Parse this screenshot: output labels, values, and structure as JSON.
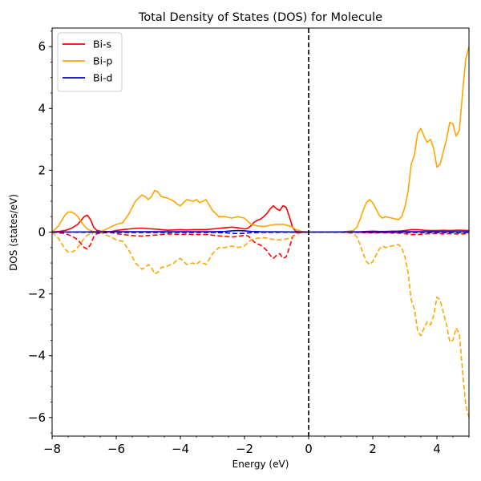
{
  "chart_data": {
    "type": "line",
    "title": "Total Density of States (DOS) for Molecule",
    "xlabel": "Energy (eV)",
    "ylabel": "DOS (states/eV)",
    "xlim": [
      -8,
      5
    ],
    "ylim": [
      -6.6,
      6.6
    ],
    "x_ticks": [
      -8,
      -6,
      -4,
      -2,
      0,
      2,
      4
    ],
    "x_tick_labels": [
      "−8",
      "−6",
      "−4",
      "−2",
      "0",
      "2",
      "4"
    ],
    "y_ticks": [
      -6,
      -4,
      -2,
      0,
      2,
      4,
      6
    ],
    "y_tick_labels": [
      "−6",
      "−4",
      "−2",
      "0",
      "2",
      "4",
      "6"
    ],
    "grid": false,
    "legend_position": "top-left",
    "fermi_level": 0,
    "series": [
      {
        "name": "Bi-s",
        "color": "#ff0000",
        "x": [
          -8,
          -7.8,
          -7.6,
          -7.4,
          -7.2,
          -7.0,
          -6.9,
          -6.8,
          -6.7,
          -6.6,
          -6.4,
          -6.2,
          -6.0,
          -5.8,
          -5.6,
          -5.4,
          -5.2,
          -5.0,
          -4.8,
          -4.6,
          -4.4,
          -4.2,
          -4.0,
          -3.8,
          -3.6,
          -3.4,
          -3.2,
          -3.0,
          -2.8,
          -2.6,
          -2.4,
          -2.2,
          -2.0,
          -1.9,
          -1.8,
          -1.7,
          -1.6,
          -1.5,
          -1.4,
          -1.3,
          -1.2,
          -1.1,
          -1.0,
          -0.9,
          -0.8,
          -0.7,
          -0.6,
          -0.5,
          -0.4,
          -0.2,
          0,
          0.5,
          1.0,
          1.5,
          1.8,
          2.0,
          2.2,
          2.4,
          2.6,
          2.8,
          3.0,
          3.2,
          3.4,
          3.6,
          3.8,
          4.0,
          4.2,
          4.4,
          4.6,
          4.8,
          5.0
        ],
        "up": [
          0,
          0.02,
          0.05,
          0.12,
          0.25,
          0.5,
          0.55,
          0.4,
          0.15,
          0.05,
          0.02,
          0.01,
          0.05,
          0.08,
          0.1,
          0.12,
          0.13,
          0.11,
          0.1,
          0.08,
          0.06,
          0.07,
          0.08,
          0.07,
          0.08,
          0.08,
          0.08,
          0.1,
          0.12,
          0.14,
          0.16,
          0.14,
          0.1,
          0.12,
          0.2,
          0.32,
          0.38,
          0.42,
          0.5,
          0.6,
          0.75,
          0.85,
          0.75,
          0.7,
          0.85,
          0.8,
          0.5,
          0.15,
          0.02,
          0,
          0,
          0,
          0,
          0,
          0.02,
          0.03,
          0.02,
          0.02,
          0.03,
          0.03,
          0.05,
          0.08,
          0.08,
          0.06,
          0.05,
          0.05,
          0.06,
          0.05,
          0.06,
          0.06,
          0.05
        ],
        "down": [
          0,
          -0.02,
          -0.05,
          -0.12,
          -0.25,
          -0.5,
          -0.55,
          -0.4,
          -0.15,
          -0.05,
          -0.02,
          -0.01,
          -0.05,
          -0.08,
          -0.1,
          -0.12,
          -0.13,
          -0.11,
          -0.1,
          -0.08,
          -0.06,
          -0.07,
          -0.08,
          -0.07,
          -0.08,
          -0.08,
          -0.08,
          -0.1,
          -0.12,
          -0.14,
          -0.16,
          -0.14,
          -0.1,
          -0.12,
          -0.2,
          -0.32,
          -0.38,
          -0.42,
          -0.5,
          -0.6,
          -0.75,
          -0.85,
          -0.75,
          -0.7,
          -0.85,
          -0.8,
          -0.5,
          -0.15,
          -0.02,
          0,
          0,
          0,
          0,
          0,
          -0.02,
          -0.03,
          -0.02,
          -0.02,
          -0.03,
          -0.03,
          -0.05,
          -0.08,
          -0.08,
          -0.06,
          -0.05,
          -0.05,
          -0.06,
          -0.05,
          -0.06,
          -0.06,
          -0.05
        ]
      },
      {
        "name": "Bi-p",
        "color": "#ffa500",
        "x": [
          -8,
          -7.8,
          -7.6,
          -7.5,
          -7.4,
          -7.3,
          -7.2,
          -7.1,
          -7.0,
          -6.9,
          -6.8,
          -6.7,
          -6.6,
          -6.4,
          -6.2,
          -6.0,
          -5.8,
          -5.6,
          -5.4,
          -5.2,
          -5.1,
          -5.0,
          -4.9,
          -4.8,
          -4.7,
          -4.6,
          -4.4,
          -4.2,
          -4.1,
          -4.0,
          -3.9,
          -3.8,
          -3.6,
          -3.5,
          -3.4,
          -3.2,
          -3.0,
          -2.8,
          -2.6,
          -2.4,
          -2.2,
          -2.0,
          -1.9,
          -1.8,
          -1.6,
          -1.4,
          -1.2,
          -1.0,
          -0.8,
          -0.6,
          -0.5,
          -0.4,
          -0.2,
          0,
          0.5,
          1.0,
          1.4,
          1.5,
          1.6,
          1.7,
          1.8,
          1.9,
          2.0,
          2.1,
          2.2,
          2.3,
          2.4,
          2.6,
          2.8,
          2.9,
          3.0,
          3.1,
          3.2,
          3.3,
          3.4,
          3.5,
          3.6,
          3.7,
          3.8,
          3.9,
          4.0,
          4.1,
          4.2,
          4.3,
          4.4,
          4.5,
          4.6,
          4.7,
          4.8,
          4.9,
          5.0
        ],
        "up": [
          0,
          0.2,
          0.55,
          0.65,
          0.65,
          0.6,
          0.5,
          0.35,
          0.2,
          0.1,
          0.05,
          0.02,
          0,
          0.05,
          0.15,
          0.25,
          0.3,
          0.6,
          1.0,
          1.2,
          1.15,
          1.05,
          1.15,
          1.35,
          1.3,
          1.15,
          1.1,
          1.0,
          0.9,
          0.85,
          0.95,
          1.05,
          1.0,
          1.05,
          0.95,
          1.05,
          0.7,
          0.5,
          0.5,
          0.45,
          0.5,
          0.45,
          0.35,
          0.25,
          0.2,
          0.18,
          0.22,
          0.25,
          0.25,
          0.2,
          0.15,
          0.08,
          0.02,
          0,
          0,
          0,
          0.05,
          0.15,
          0.4,
          0.7,
          0.95,
          1.05,
          0.95,
          0.75,
          0.55,
          0.45,
          0.5,
          0.45,
          0.4,
          0.5,
          0.8,
          1.3,
          2.2,
          2.5,
          3.2,
          3.35,
          3.1,
          2.9,
          3.0,
          2.7,
          2.1,
          2.2,
          2.6,
          3.0,
          3.55,
          3.5,
          3.1,
          3.3,
          4.5,
          5.6,
          6.0
        ],
        "down": [
          0,
          -0.2,
          -0.55,
          -0.65,
          -0.65,
          -0.6,
          -0.5,
          -0.35,
          -0.2,
          -0.1,
          -0.05,
          -0.02,
          0,
          -0.05,
          -0.15,
          -0.25,
          -0.3,
          -0.6,
          -1.0,
          -1.2,
          -1.15,
          -1.05,
          -1.15,
          -1.35,
          -1.3,
          -1.15,
          -1.1,
          -1.0,
          -0.9,
          -0.85,
          -0.95,
          -1.05,
          -1.0,
          -1.05,
          -0.95,
          -1.05,
          -0.7,
          -0.5,
          -0.5,
          -0.45,
          -0.5,
          -0.45,
          -0.35,
          -0.25,
          -0.2,
          -0.18,
          -0.22,
          -0.25,
          -0.25,
          -0.2,
          -0.15,
          -0.08,
          -0.02,
          0,
          0,
          0,
          -0.05,
          -0.15,
          -0.4,
          -0.7,
          -0.95,
          -1.05,
          -0.95,
          -0.75,
          -0.55,
          -0.45,
          -0.5,
          -0.45,
          -0.4,
          -0.5,
          -0.8,
          -1.3,
          -2.2,
          -2.5,
          -3.2,
          -3.35,
          -3.1,
          -2.9,
          -3.0,
          -2.7,
          -2.1,
          -2.2,
          -2.6,
          -3.0,
          -3.55,
          -3.5,
          -3.1,
          -3.3,
          -4.5,
          -5.6,
          -6.0
        ]
      },
      {
        "name": "Bi-d",
        "color": "#0000cd",
        "x": [
          -8,
          -6,
          -4,
          -3,
          -2.6,
          -2.4,
          -2.2,
          -2.0,
          -1.8,
          -1.5,
          0,
          2,
          4,
          5
        ],
        "up": [
          0,
          0.01,
          0.01,
          0.01,
          0.02,
          0.04,
          0.05,
          0.04,
          0.02,
          0.01,
          0,
          0.01,
          0.01,
          0.01
        ],
        "down": [
          0,
          -0.01,
          -0.01,
          -0.01,
          -0.02,
          -0.04,
          -0.05,
          -0.04,
          -0.02,
          -0.01,
          0,
          -0.01,
          -0.01,
          -0.01
        ]
      }
    ]
  }
}
